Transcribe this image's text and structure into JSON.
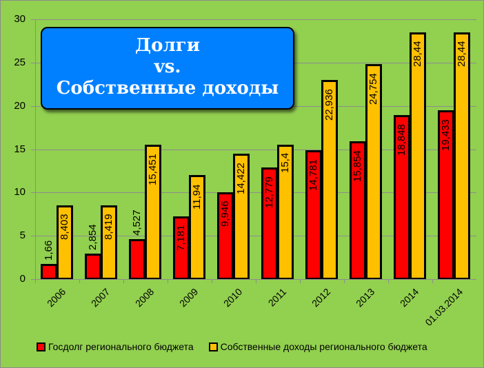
{
  "chart_data": {
    "type": "bar",
    "title": "Долги vs. Собственные доходы",
    "title_lines": [
      "Долги",
      "vs.",
      "Собственные доходы"
    ],
    "categories": [
      "2006",
      "2007",
      "2008",
      "2009",
      "2010",
      "2011",
      "2012",
      "2013",
      "2014",
      "01.03.2014"
    ],
    "series": [
      {
        "name": "Госдолг регионального бюджета",
        "color": "#ff0000",
        "values": [
          1.66,
          2.854,
          4.527,
          7.181,
          9.946,
          12.779,
          14.781,
          15.854,
          18.848,
          19.433
        ],
        "labels": [
          "1,66",
          "2,854",
          "4,527",
          "7,181",
          "9,946",
          "12,779",
          "14,781",
          "15,854",
          "18,848",
          "19,433"
        ]
      },
      {
        "name": "Собственные доходы регионального бюджета",
        "color": "#ffc000",
        "values": [
          8.403,
          8.419,
          15.451,
          11.94,
          14.422,
          15.4,
          22.936,
          24.754,
          28.44,
          28.44
        ],
        "labels": [
          "8,403",
          "8,419",
          "15,451",
          "11,94",
          "14,422",
          "15,4",
          "22,936",
          "24,754",
          "28,44",
          "28,44"
        ]
      }
    ],
    "xlabel": "",
    "ylabel": "",
    "ylim": [
      0,
      30
    ],
    "yticks": [
      "0",
      "5",
      "10",
      "15",
      "20",
      "25",
      "30"
    ],
    "grid": true,
    "legend_position": "bottom",
    "background": "#92d050",
    "title_box_color": "#0080ff"
  }
}
